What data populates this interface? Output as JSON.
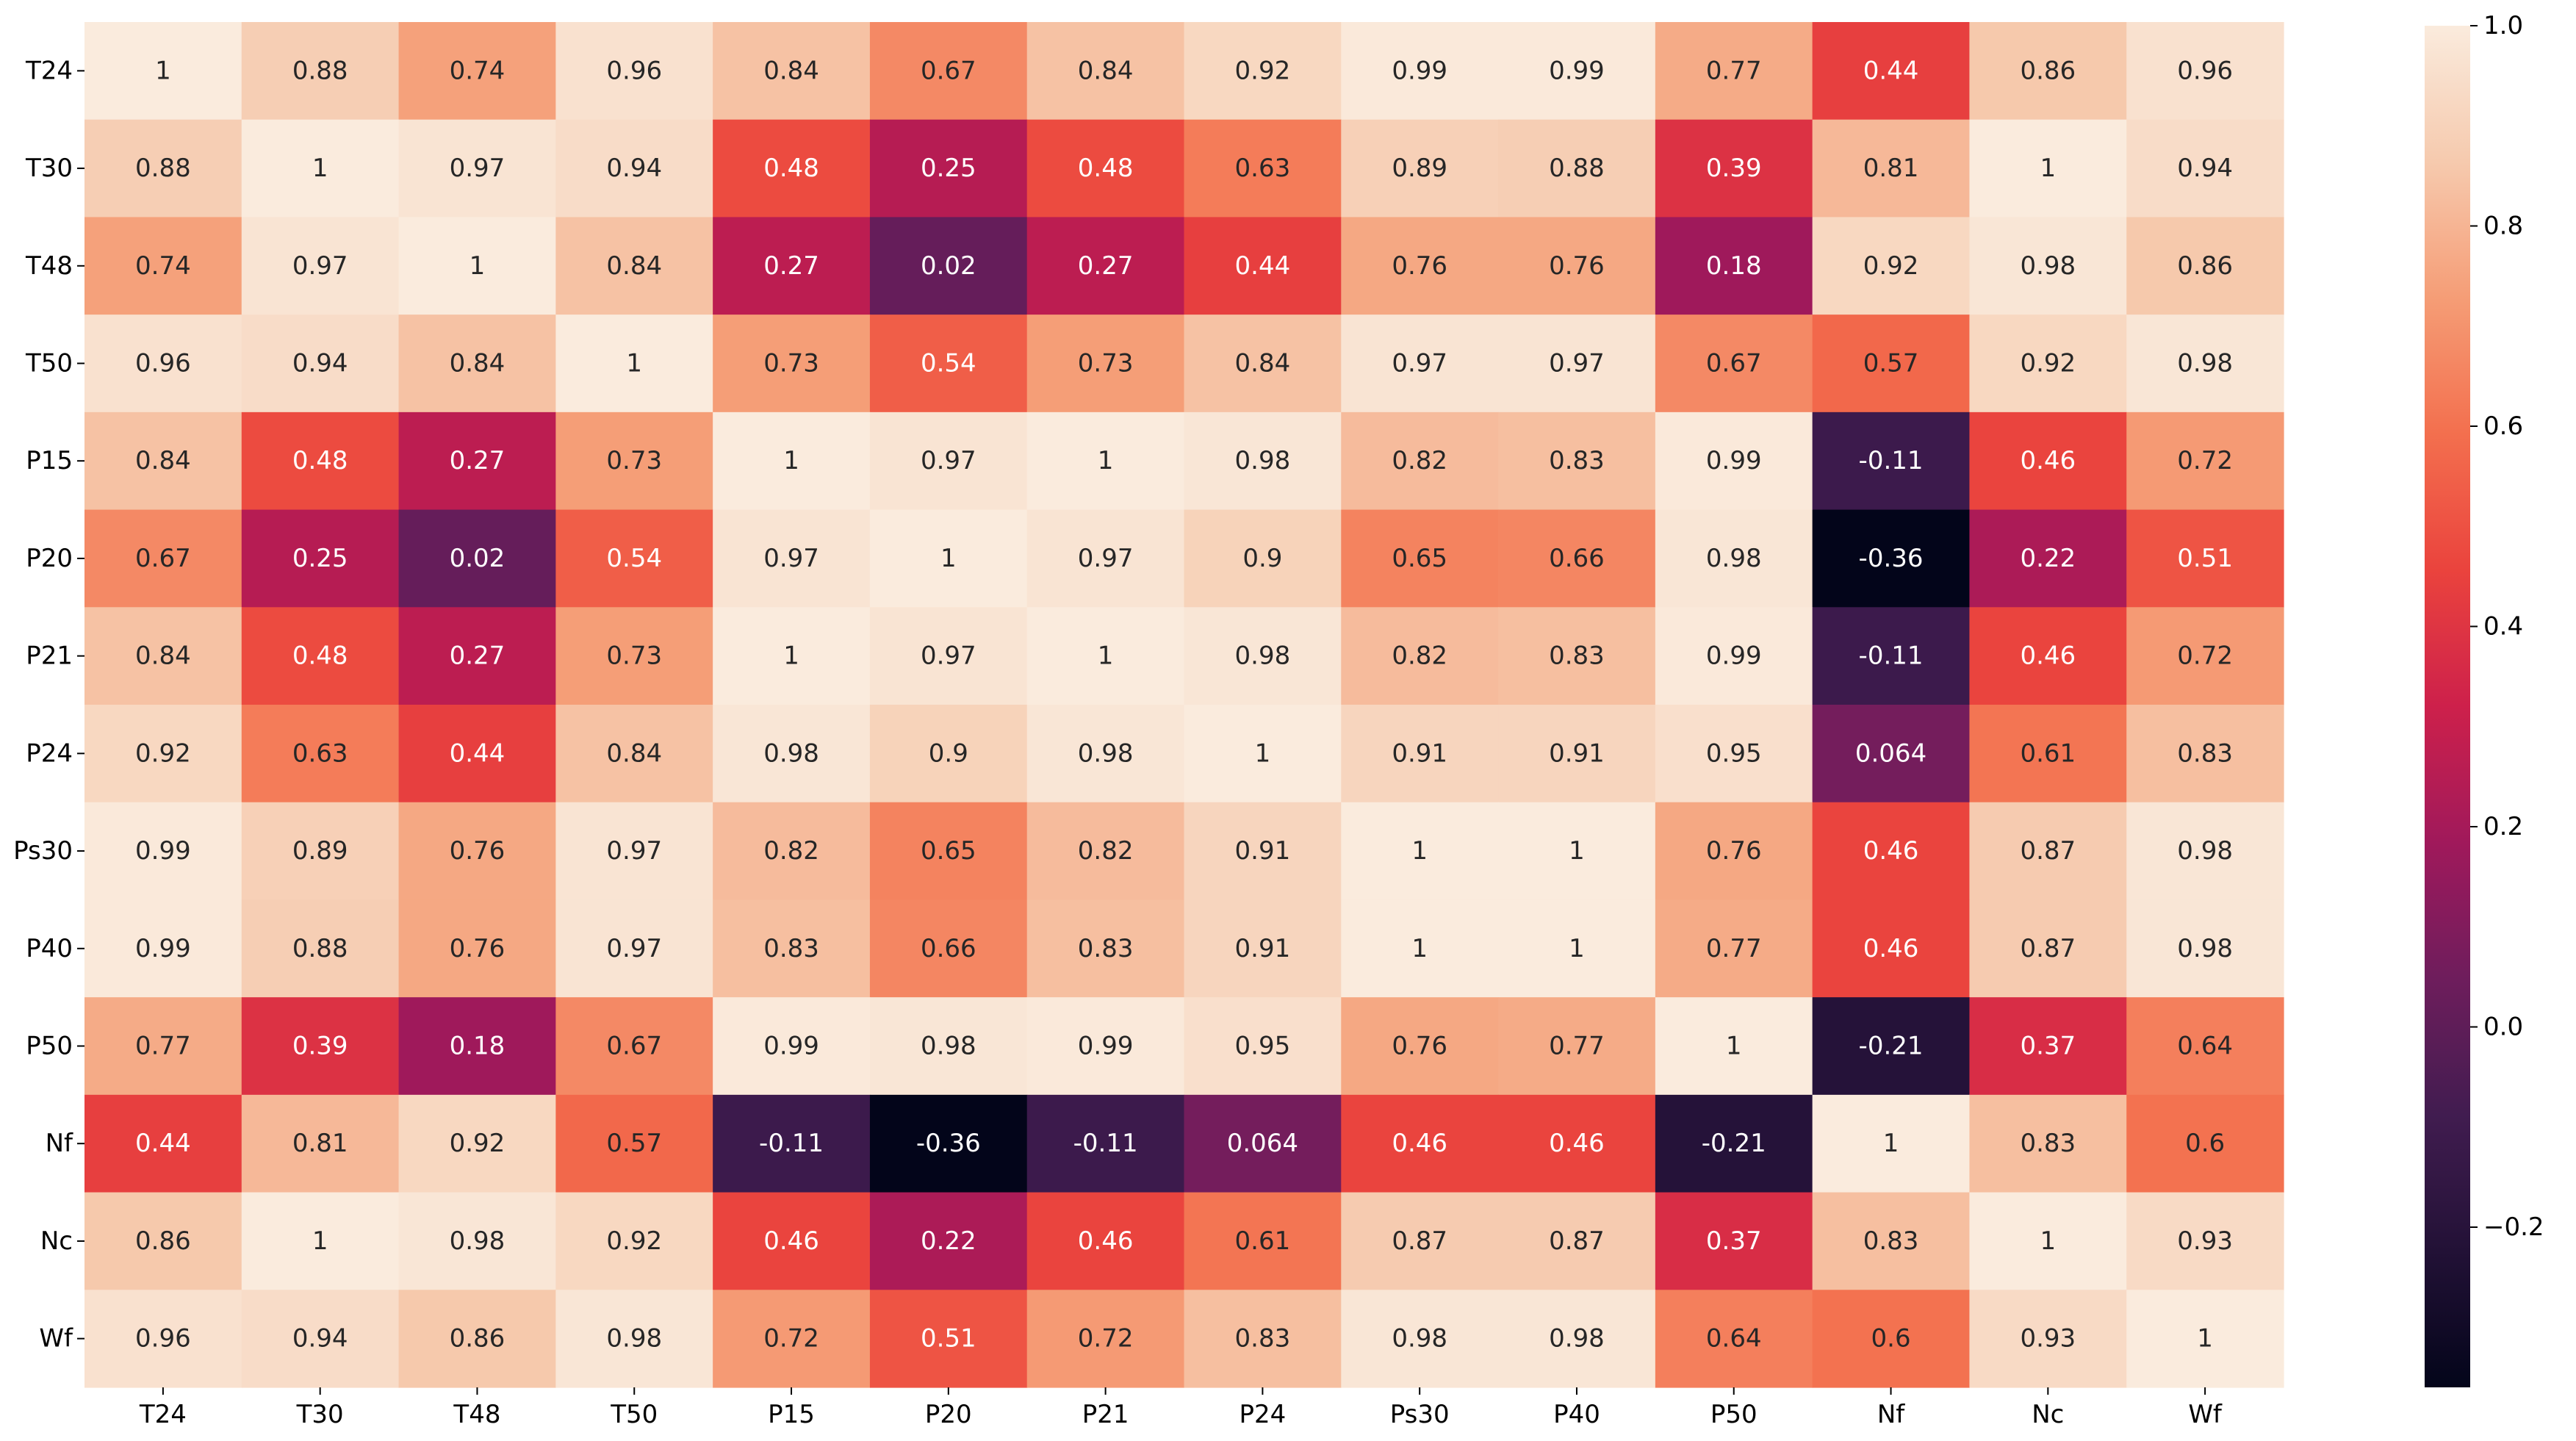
{
  "chart_data": {
    "type": "heatmap",
    "title": "",
    "xlabel": "",
    "ylabel": "",
    "x_labels": [
      "T24",
      "T30",
      "T48",
      "T50",
      "P15",
      "P20",
      "P21",
      "P24",
      "Ps30",
      "P40",
      "P50",
      "Nf",
      "Nc",
      "Wf"
    ],
    "y_labels": [
      "T24",
      "T30",
      "T48",
      "T50",
      "P15",
      "P20",
      "P21",
      "P24",
      "Ps30",
      "P40",
      "P50",
      "Nf",
      "Nc",
      "Wf"
    ],
    "annotations": [
      [
        "1",
        "0.88",
        "0.74",
        "0.96",
        "0.84",
        "0.67",
        "0.84",
        "0.92",
        "0.99",
        "0.99",
        "0.77",
        "0.44",
        "0.86",
        "0.96"
      ],
      [
        "0.88",
        "1",
        "0.97",
        "0.94",
        "0.48",
        "0.25",
        "0.48",
        "0.63",
        "0.89",
        "0.88",
        "0.39",
        "0.81",
        "1",
        "0.94"
      ],
      [
        "0.74",
        "0.97",
        "1",
        "0.84",
        "0.27",
        "0.02",
        "0.27",
        "0.44",
        "0.76",
        "0.76",
        "0.18",
        "0.92",
        "0.98",
        "0.86"
      ],
      [
        "0.96",
        "0.94",
        "0.84",
        "1",
        "0.73",
        "0.54",
        "0.73",
        "0.84",
        "0.97",
        "0.97",
        "0.67",
        "0.57",
        "0.92",
        "0.98"
      ],
      [
        "0.84",
        "0.48",
        "0.27",
        "0.73",
        "1",
        "0.97",
        "1",
        "0.98",
        "0.82",
        "0.83",
        "0.99",
        "-0.11",
        "0.46",
        "0.72"
      ],
      [
        "0.67",
        "0.25",
        "0.02",
        "0.54",
        "0.97",
        "1",
        "0.97",
        "0.9",
        "0.65",
        "0.66",
        "0.98",
        "-0.36",
        "0.22",
        "0.51"
      ],
      [
        "0.84",
        "0.48",
        "0.27",
        "0.73",
        "1",
        "0.97",
        "1",
        "0.98",
        "0.82",
        "0.83",
        "0.99",
        "-0.11",
        "0.46",
        "0.72"
      ],
      [
        "0.92",
        "0.63",
        "0.44",
        "0.84",
        "0.98",
        "0.9",
        "0.98",
        "1",
        "0.91",
        "0.91",
        "0.95",
        "0.064",
        "0.61",
        "0.83"
      ],
      [
        "0.99",
        "0.89",
        "0.76",
        "0.97",
        "0.82",
        "0.65",
        "0.82",
        "0.91",
        "1",
        "1",
        "0.76",
        "0.46",
        "0.87",
        "0.98"
      ],
      [
        "0.99",
        "0.88",
        "0.76",
        "0.97",
        "0.83",
        "0.66",
        "0.83",
        "0.91",
        "1",
        "1",
        "0.77",
        "0.46",
        "0.87",
        "0.98"
      ],
      [
        "0.77",
        "0.39",
        "0.18",
        "0.67",
        "0.99",
        "0.98",
        "0.99",
        "0.95",
        "0.76",
        "0.77",
        "1",
        "-0.21",
        "0.37",
        "0.64"
      ],
      [
        "0.44",
        "0.81",
        "0.92",
        "0.57",
        "-0.11",
        "-0.36",
        "-0.11",
        "0.064",
        "0.46",
        "0.46",
        "-0.21",
        "1",
        "0.83",
        "0.6"
      ],
      [
        "0.86",
        "1",
        "0.98",
        "0.92",
        "0.46",
        "0.22",
        "0.46",
        "0.61",
        "0.87",
        "0.87",
        "0.37",
        "0.83",
        "1",
        "0.93"
      ],
      [
        "0.96",
        "0.94",
        "0.86",
        "0.98",
        "0.72",
        "0.51",
        "0.72",
        "0.83",
        "0.98",
        "0.98",
        "0.64",
        "0.6",
        "0.93",
        "1"
      ]
    ],
    "vmin": -0.36,
    "vmax": 1.0,
    "colormap": "rocket",
    "colorbar_ticks": [
      -0.2,
      0.0,
      0.2,
      0.4,
      0.6,
      0.8,
      1.0
    ],
    "colorbar_tick_labels": [
      "−0.2",
      "0.0",
      "0.2",
      "0.4",
      "0.6",
      "0.8",
      "1.0"
    ],
    "grid": false,
    "legend": "colorbar-right"
  }
}
